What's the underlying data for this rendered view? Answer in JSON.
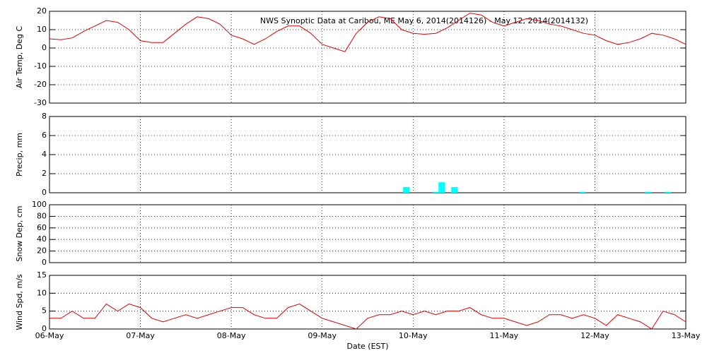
{
  "chart_data": [
    {
      "type": "line",
      "title": "NWS Synoptic Data at Caribou, ME   May  6, 2014(2014126) - May 12, 2014(2014132)",
      "ylabel": "Air Temp, Deg C",
      "xlim": [
        0,
        7
      ],
      "xticks": [
        0,
        1,
        2,
        3,
        4,
        5,
        6,
        7
      ],
      "ylim": [
        -30,
        20
      ],
      "yticks": [
        -30,
        -20,
        -10,
        0,
        10,
        20
      ],
      "grid": true,
      "x": [
        0,
        0.125,
        0.25,
        0.375,
        0.5,
        0.625,
        0.75,
        0.875,
        1,
        1.125,
        1.25,
        1.375,
        1.5,
        1.625,
        1.75,
        1.875,
        2,
        2.125,
        2.25,
        2.375,
        2.5,
        2.625,
        2.75,
        2.875,
        3,
        3.125,
        3.25,
        3.375,
        3.5,
        3.625,
        3.75,
        3.875,
        4,
        4.125,
        4.25,
        4.375,
        4.5,
        4.625,
        4.75,
        4.875,
        5,
        5.125,
        5.25,
        5.375,
        5.5,
        5.625,
        5.75,
        5.875,
        6,
        6.125,
        6.25,
        6.375,
        6.5,
        6.625,
        6.75,
        6.875,
        7
      ],
      "series": [
        {
          "color": "#e00000",
          "values": [
            5,
            4.5,
            5.5,
            9,
            12,
            15,
            14,
            10,
            4,
            3,
            3,
            8,
            13,
            17,
            16,
            13,
            7,
            5,
            2,
            5,
            9,
            12,
            12,
            8,
            2,
            0,
            -2,
            8,
            14,
            17,
            16,
            10,
            8,
            7.5,
            8,
            11,
            15,
            19,
            18,
            14,
            12,
            14,
            16,
            15,
            13,
            12,
            10,
            8,
            7,
            4,
            2,
            3,
            5,
            8,
            7,
            5,
            2
          ]
        }
      ]
    },
    {
      "type": "bar",
      "ylabel": "Precip, mm",
      "xlim": [
        0,
        7
      ],
      "xticks": [
        0,
        1,
        2,
        3,
        4,
        5,
        6,
        7
      ],
      "ylim": [
        0,
        8
      ],
      "yticks": [
        0,
        2,
        4,
        6,
        8
      ],
      "grid": true,
      "x": [
        3.89,
        4.22,
        4.28,
        4.42,
        5.83,
        6.55,
        6.77
      ],
      "series": [
        {
          "color": "#00ffff",
          "values": [
            0.6,
            0.1,
            1.1,
            0.6,
            0.1,
            0.1,
            0.1
          ]
        }
      ]
    },
    {
      "type": "line",
      "ylabel": "Snow Dep, cm",
      "xlim": [
        0,
        7
      ],
      "xticks": [
        0,
        1,
        2,
        3,
        4,
        5,
        6,
        7
      ],
      "ylim": [
        0,
        100
      ],
      "yticks": [
        0,
        20,
        40,
        60,
        80,
        100
      ],
      "grid": true
    },
    {
      "type": "line",
      "ylabel": "Wind Spd, m/s",
      "xlabel": "Date (EST)",
      "xlim": [
        0,
        7
      ],
      "xticks": [
        {
          "value": 0,
          "label": "06-May"
        },
        {
          "value": 1,
          "label": "07-May"
        },
        {
          "value": 2,
          "label": "08-May"
        },
        {
          "value": 3,
          "label": "09-May"
        },
        {
          "value": 4,
          "label": "10-May"
        },
        {
          "value": 5,
          "label": "11-May"
        },
        {
          "value": 6,
          "label": "12-May"
        },
        {
          "value": 7,
          "label": "13-May"
        }
      ],
      "ylim": [
        0,
        15
      ],
      "yticks": [
        0,
        5,
        10,
        15
      ],
      "grid": true,
      "x": [
        0,
        0.125,
        0.25,
        0.375,
        0.5,
        0.625,
        0.75,
        0.875,
        1,
        1.125,
        1.25,
        1.375,
        1.5,
        1.625,
        1.75,
        1.875,
        2,
        2.125,
        2.25,
        2.375,
        2.5,
        2.625,
        2.75,
        2.875,
        3,
        3.125,
        3.25,
        3.375,
        3.5,
        3.625,
        3.75,
        3.875,
        4,
        4.125,
        4.25,
        4.375,
        4.5,
        4.625,
        4.75,
        4.875,
        5,
        5.125,
        5.25,
        5.375,
        5.5,
        5.625,
        5.75,
        5.875,
        6,
        6.125,
        6.25,
        6.375,
        6.5,
        6.625,
        6.75,
        6.875,
        7
      ],
      "series": [
        {
          "color": "#e00000",
          "values": [
            3,
            3,
            5,
            3,
            3,
            7,
            5,
            7,
            6,
            3,
            2,
            3,
            4,
            3,
            4,
            5,
            6,
            6,
            4,
            3,
            3,
            6,
            7,
            5,
            3,
            2,
            1,
            0,
            3,
            4,
            4,
            5,
            4,
            5,
            4,
            5,
            5,
            6,
            4,
            3,
            3,
            2,
            1,
            2,
            4,
            4,
            3,
            4,
            3,
            1,
            4,
            3,
            2,
            0,
            5,
            4,
            2
          ]
        }
      ]
    }
  ]
}
